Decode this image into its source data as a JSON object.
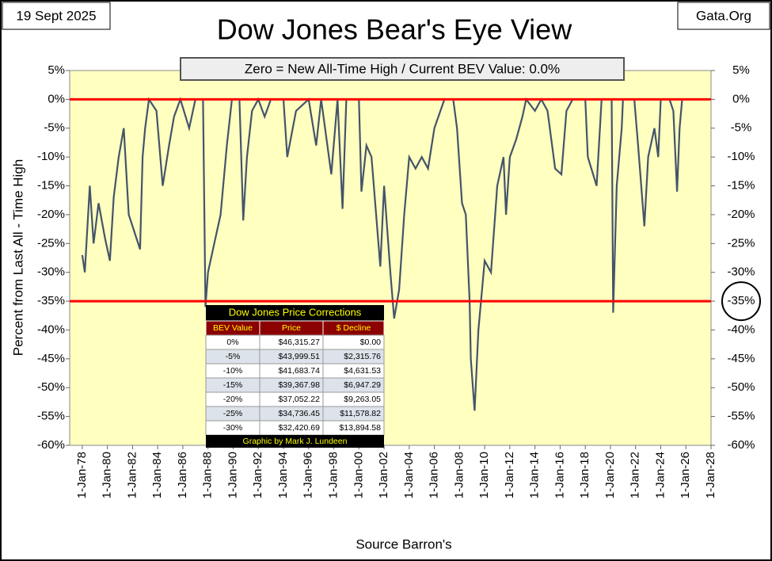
{
  "chart_data": {
    "type": "line",
    "title": "Dow Jones Bear's Eye View",
    "subtitle": "Zero = New All-Time High / Current BEV Value:  0.0%",
    "date_label": "19 Sept 2025",
    "source_site": "Gata.Org",
    "ylabel": "Percent from  Last  All - Time  High",
    "xlabel": "Source Barron's",
    "xlim": [
      1977,
      2028
    ],
    "xticks": [
      {
        "value": 1978,
        "label": "1-Jan-78"
      },
      {
        "value": 1980,
        "label": "1-Jan-80"
      },
      {
        "value": 1982,
        "label": "1-Jan-82"
      },
      {
        "value": 1984,
        "label": "1-Jan-84"
      },
      {
        "value": 1986,
        "label": "1-Jan-86"
      },
      {
        "value": 1988,
        "label": "1-Jan-88"
      },
      {
        "value": 1990,
        "label": "1-Jan-90"
      },
      {
        "value": 1992,
        "label": "1-Jan-92"
      },
      {
        "value": 1994,
        "label": "1-Jan-94"
      },
      {
        "value": 1996,
        "label": "1-Jan-96"
      },
      {
        "value": 1998,
        "label": "1-Jan-98"
      },
      {
        "value": 2000,
        "label": "1-Jan-00"
      },
      {
        "value": 2002,
        "label": "1-Jan-02"
      },
      {
        "value": 2004,
        "label": "1-Jan-04"
      },
      {
        "value": 2006,
        "label": "1-Jan-06"
      },
      {
        "value": 2008,
        "label": "1-Jan-08"
      },
      {
        "value": 2010,
        "label": "1-Jan-10"
      },
      {
        "value": 2012,
        "label": "1-Jan-12"
      },
      {
        "value": 2014,
        "label": "1-Jan-14"
      },
      {
        "value": 2016,
        "label": "1-Jan-16"
      },
      {
        "value": 2018,
        "label": "1-Jan-18"
      },
      {
        "value": 2020,
        "label": "1-Jan-20"
      },
      {
        "value": 2022,
        "label": "1-Jan-22"
      },
      {
        "value": 2024,
        "label": "1-Jan-24"
      },
      {
        "value": 2026,
        "label": "1-Jan-26"
      },
      {
        "value": 2028,
        "label": "1-Jan-28"
      }
    ],
    "ylim": [
      -60,
      5
    ],
    "yticks": [
      {
        "value": 5,
        "label": "5%"
      },
      {
        "value": 0,
        "label": "0%"
      },
      {
        "value": -5,
        "label": "-5%"
      },
      {
        "value": -10,
        "label": "-10%"
      },
      {
        "value": -15,
        "label": "-15%"
      },
      {
        "value": -20,
        "label": "-20%"
      },
      {
        "value": -25,
        "label": "-25%"
      },
      {
        "value": -30,
        "label": "-30%"
      },
      {
        "value": -35,
        "label": "-35%"
      },
      {
        "value": -40,
        "label": "-40%"
      },
      {
        "value": -45,
        "label": "-45%"
      },
      {
        "value": -50,
        "label": "-50%"
      },
      {
        "value": -55,
        "label": "-55%"
      },
      {
        "value": -60,
        "label": "-60%"
      }
    ],
    "y2lim": [
      -60,
      5
    ],
    "y2ticks": [
      {
        "value": 5,
        "label": "5%"
      },
      {
        "value": 0,
        "label": "0%"
      },
      {
        "value": -5,
        "label": "-5%"
      },
      {
        "value": -10,
        "label": "-10%"
      },
      {
        "value": -15,
        "label": "-15%"
      },
      {
        "value": -20,
        "label": "-20%"
      },
      {
        "value": -25,
        "label": "-25%"
      },
      {
        "value": -30,
        "label": "-30%"
      },
      {
        "value": -35,
        "label": "-35%"
      },
      {
        "value": -40,
        "label": "-40%"
      },
      {
        "value": -45,
        "label": "-45%"
      },
      {
        "value": -50,
        "label": "-50%"
      },
      {
        "value": -55,
        "label": "-55%"
      },
      {
        "value": -60,
        "label": "-60%"
      }
    ],
    "reference_lines": [
      0,
      -35
    ],
    "reference_color": "#ff0000",
    "circled_y2_value": -35,
    "series": [
      {
        "name": "Dow Jones BEV",
        "color": "#44546a",
        "x": [
          1978.0,
          1978.2,
          1978.6,
          1978.9,
          1979.3,
          1979.8,
          1980.2,
          1980.5,
          1980.9,
          1981.3,
          1981.7,
          1982.0,
          1982.6,
          1982.8,
          1983.0,
          1983.3,
          1983.9,
          1984.4,
          1984.9,
          1985.3,
          1985.8,
          1986.5,
          1987.0,
          1987.6,
          1987.8,
          1988.0,
          1988.5,
          1989.0,
          1989.5,
          1989.9,
          1990.5,
          1990.8,
          1991.1,
          1991.5,
          1992.0,
          1992.5,
          1993.0,
          1994.0,
          1994.3,
          1995.0,
          1996.0,
          1996.6,
          1997.0,
          1997.8,
          1998.3,
          1998.7,
          1999.0,
          2000.0,
          2000.2,
          2000.6,
          2001.0,
          2001.7,
          2002.0,
          2002.5,
          2002.8,
          2003.2,
          2003.6,
          2004.0,
          2004.5,
          2005.0,
          2005.5,
          2006.0,
          2006.8,
          2007.5,
          2007.8,
          2008.2,
          2008.5,
          2008.8,
          2008.9,
          2009.2,
          2009.5,
          2010.0,
          2010.5,
          2011.0,
          2011.5,
          2011.7,
          2012.0,
          2012.5,
          2013.0,
          2013.3,
          2014.0,
          2014.5,
          2015.0,
          2015.6,
          2016.1,
          2016.5,
          2017.0,
          2018.0,
          2018.2,
          2018.9,
          2019.3,
          2019.9,
          2020.1,
          2020.22,
          2020.5,
          2020.9,
          2021.0,
          2021.9,
          2022.2,
          2022.7,
          2023.0,
          2023.5,
          2023.8,
          2024.0,
          2024.7,
          2025.0,
          2025.3,
          2025.5,
          2025.7
        ],
        "values": [
          -27,
          -30,
          -15,
          -25,
          -18,
          -24,
          -28,
          -17,
          -10,
          -5,
          -20,
          -22,
          -26,
          -10,
          -5,
          0,
          -2,
          -15,
          -8,
          -3,
          0,
          -5,
          0,
          0,
          -36,
          -30,
          -25,
          -20,
          -8,
          0,
          0,
          -21,
          -10,
          -2,
          0,
          -3,
          0,
          0,
          -10,
          -2,
          0,
          -8,
          0,
          -13,
          0,
          -19,
          0,
          0,
          -16,
          -8,
          -10,
          -29,
          -15,
          -30,
          -38,
          -33,
          -20,
          -10,
          -12,
          -10,
          -12,
          -5,
          0,
          0,
          -5,
          -18,
          -20,
          -35,
          -45,
          -54,
          -40,
          -28,
          -30,
          -15,
          -10,
          -20,
          -10,
          -7,
          -3,
          0,
          -2,
          0,
          -2,
          -12,
          -13,
          -2,
          0,
          0,
          -10,
          -15,
          0,
          0,
          0,
          -37,
          -15,
          -5,
          0,
          0,
          -8,
          -22,
          -10,
          -5,
          -10,
          0,
          0,
          -2,
          -16,
          -5,
          0
        ]
      }
    ],
    "table": {
      "title": "Dow Jones Price Corrections",
      "columns": [
        "BEV Value",
        "Price",
        "$ Decline"
      ],
      "rows": [
        [
          "0%",
          "$46,315.27",
          "$0.00"
        ],
        [
          "-5%",
          "$43,999.51",
          "$2,315.76"
        ],
        [
          "-10%",
          "$41,683.74",
          "$4,631.53"
        ],
        [
          "-15%",
          "$39,367.98",
          "$6,947.29"
        ],
        [
          "-20%",
          "$37,052.22",
          "$9,263.05"
        ],
        [
          "-25%",
          "$34,736.45",
          "$11,578.82"
        ],
        [
          "-30%",
          "$32,420.69",
          "$13,894.58"
        ]
      ],
      "footer": "Graphic by Mark J. Lundeen"
    }
  }
}
